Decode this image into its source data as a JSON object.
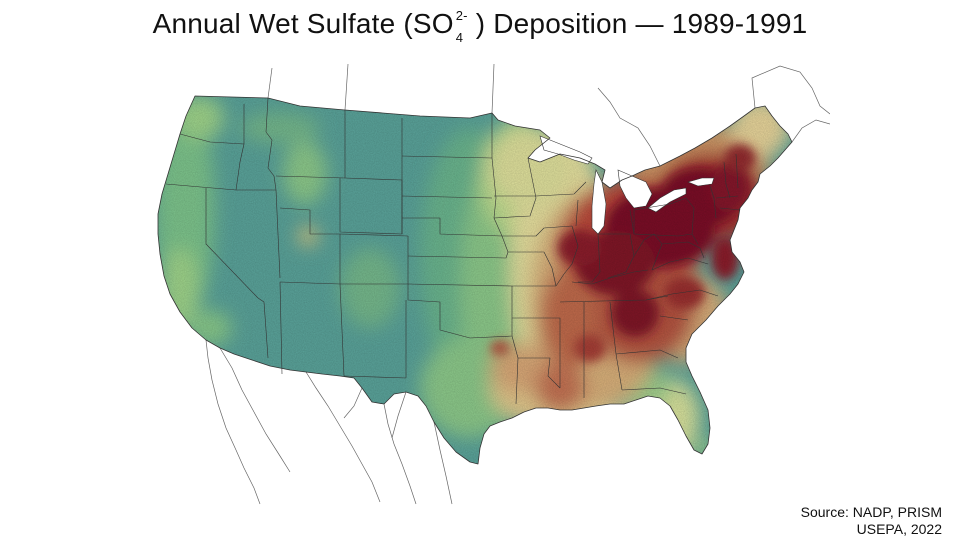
{
  "title": {
    "prefix": "Annual Wet Sulfate (SO",
    "subscript": "4",
    "superscript": "2-",
    "suffix": ") Deposition — 1989-1991"
  },
  "source": {
    "line1": "Source: NADP, PRISM",
    "line2": "USEPA, 2022"
  },
  "colors": {
    "low": "#5aa39a",
    "mid_low": "#8cc98a",
    "mid": "#e8e2a0",
    "mid_high": "#cf9a68",
    "high": "#9e2a2b",
    "very_high": "#7a0f26",
    "state_border": "#333333",
    "outside_border": "#666666"
  },
  "map": {
    "region": "contiguous United States",
    "variable": "wet sulfate deposition",
    "period": "1989-1991"
  }
}
